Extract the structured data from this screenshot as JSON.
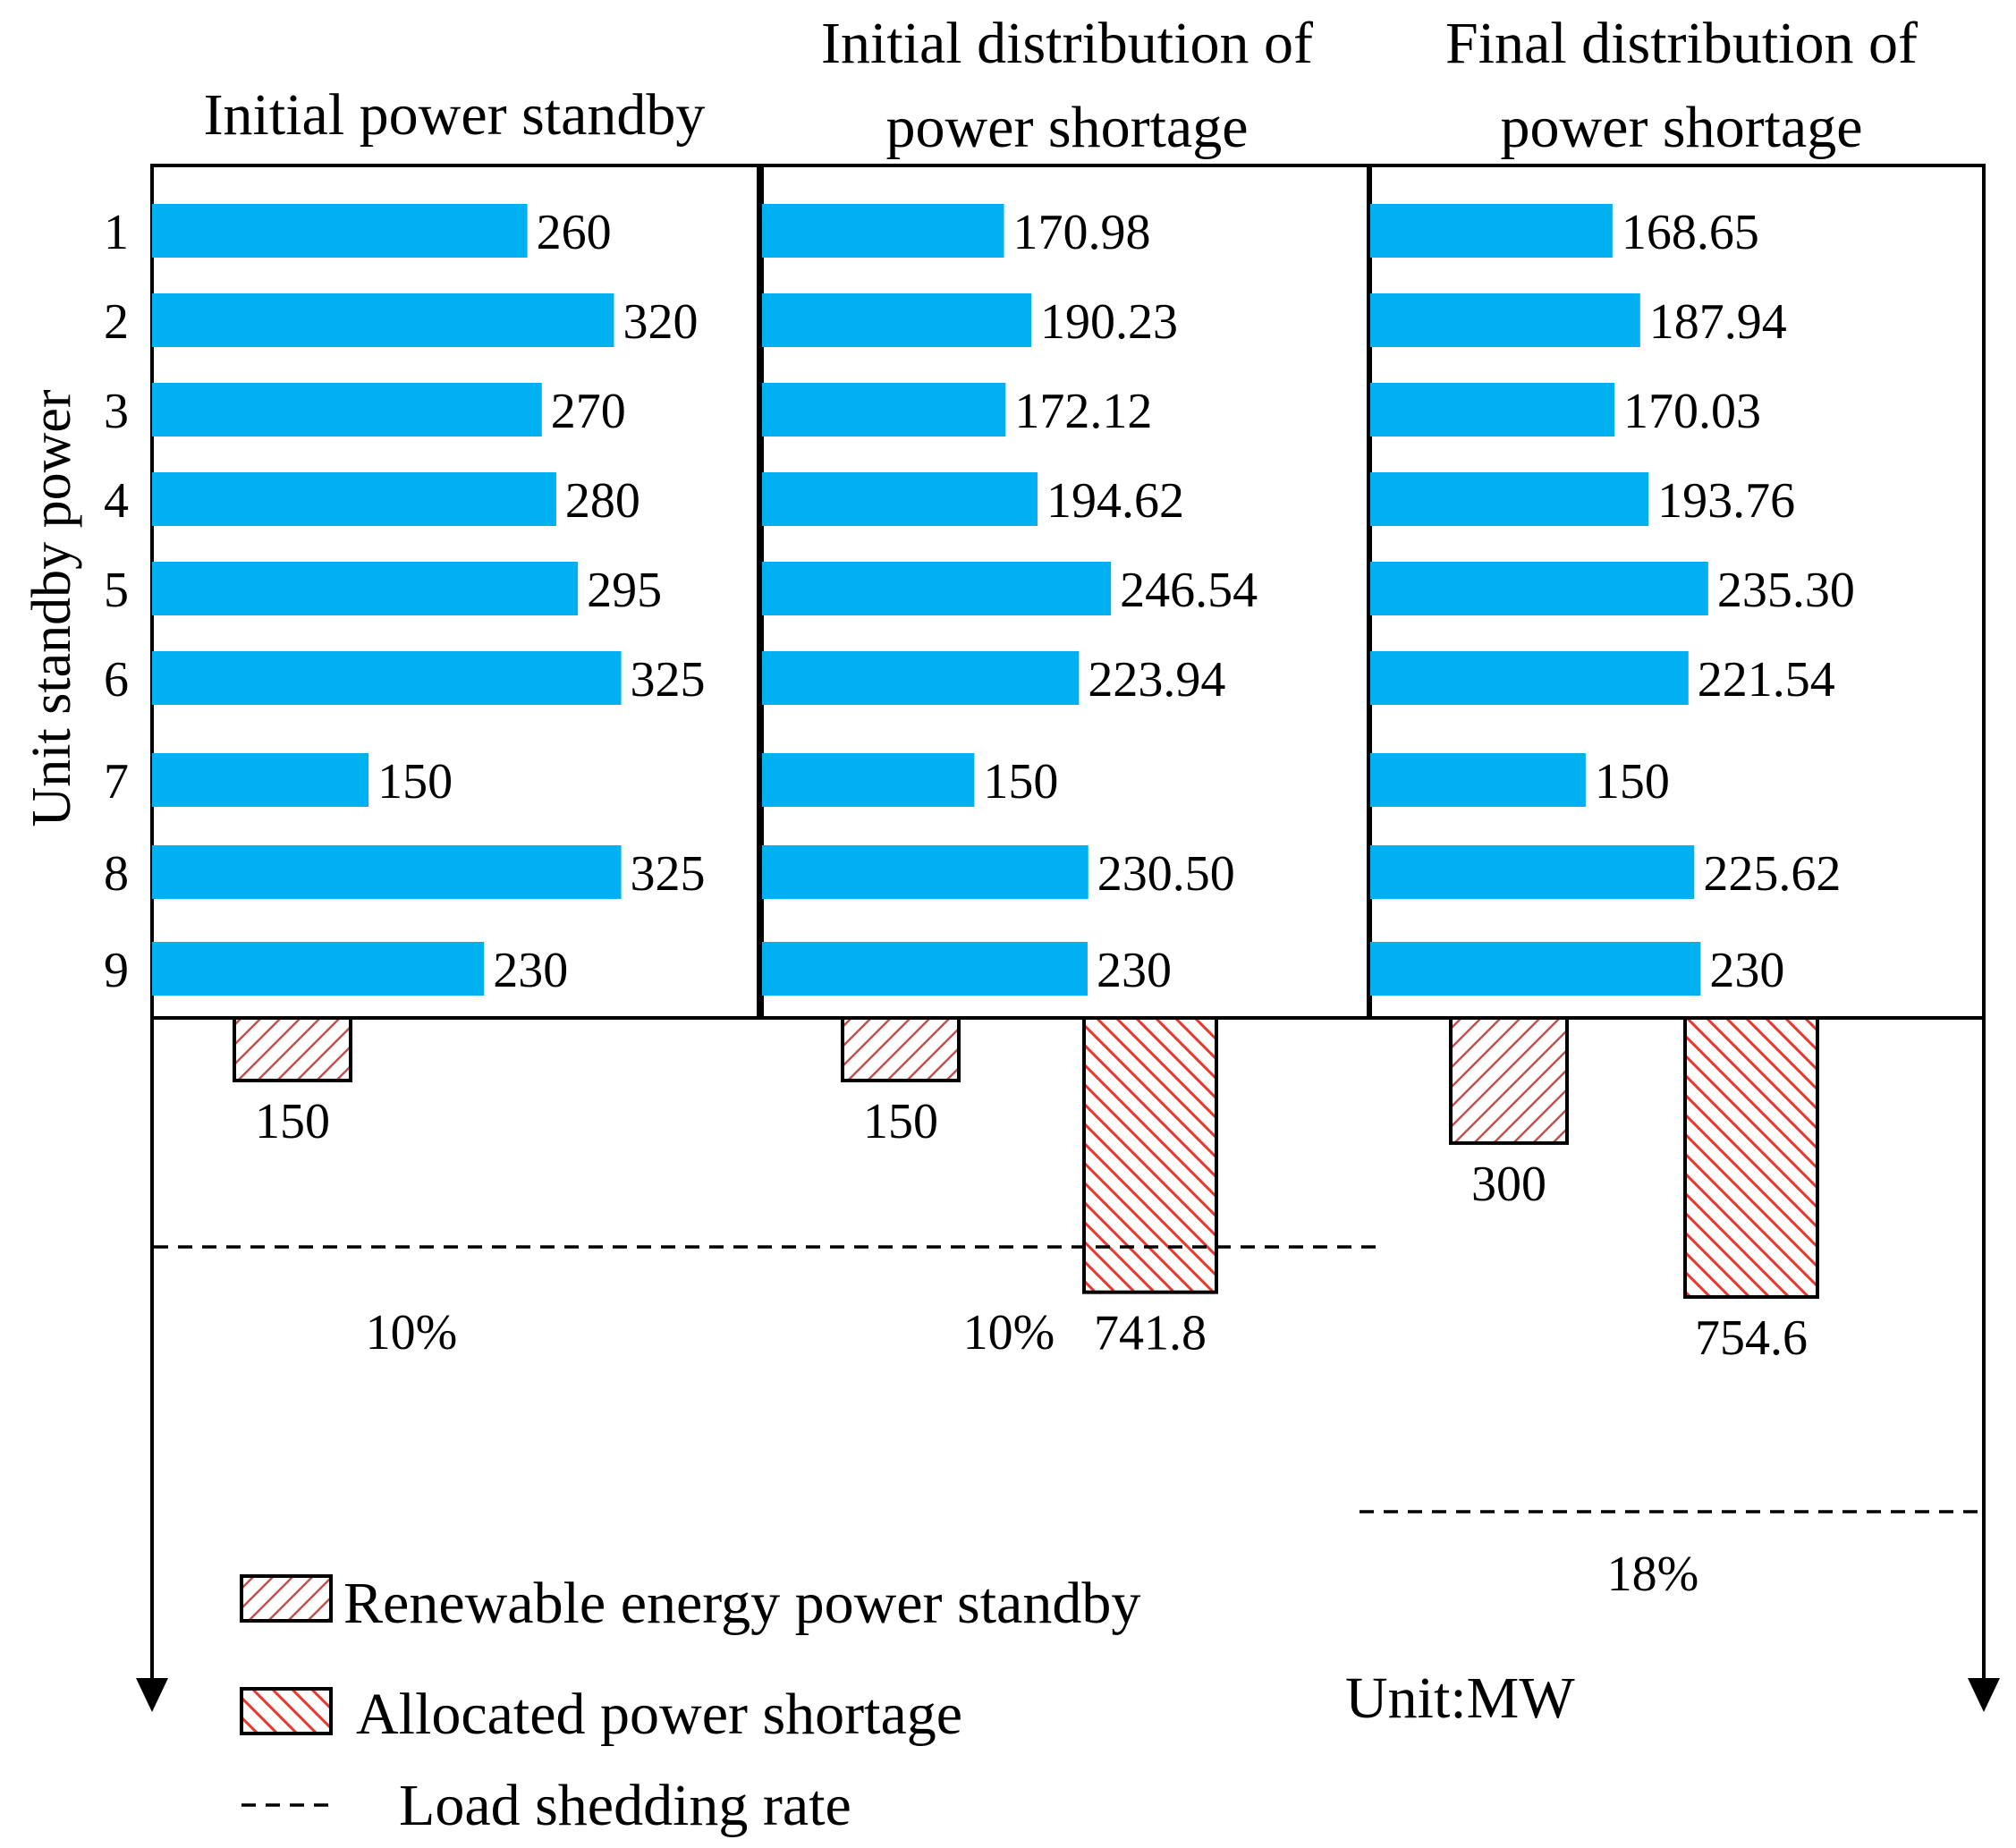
{
  "chart_data": {
    "type": "bar",
    "orientation": "horizontal",
    "unit": "Unit:MW",
    "ylabel": "Unit standby power",
    "categories": [
      "1",
      "2",
      "3",
      "4",
      "5",
      "6",
      "7",
      "8",
      "9"
    ],
    "x_max": 340,
    "panels": [
      {
        "title_lines": [
          "Initial power standby"
        ],
        "values": [
          260,
          320,
          270,
          280,
          295,
          325,
          150,
          325,
          230
        ],
        "labels": [
          "260",
          "320",
          "270",
          "280",
          "295",
          "325",
          "150",
          "325",
          "230"
        ]
      },
      {
        "title_lines": [
          "Initial distribution of",
          "power shortage"
        ],
        "values": [
          170.98,
          190.23,
          172.12,
          194.62,
          246.54,
          223.94,
          150,
          230.5,
          230
        ],
        "labels": [
          "170.98",
          "190.23",
          "172.12",
          "194.62",
          "246.54",
          "223.94",
          "150",
          "230.50",
          "230"
        ]
      },
      {
        "title_lines": [
          "Final distribution of",
          "power shortage"
        ],
        "values": [
          168.65,
          187.94,
          170.03,
          193.76,
          235.3,
          221.54,
          150,
          225.62,
          230
        ],
        "labels": [
          "168.65",
          "187.94",
          "170.03",
          "193.76",
          "235.30",
          "221.54",
          "150",
          "225.62",
          "230"
        ]
      }
    ],
    "lower_bars": [
      {
        "panel": 0,
        "series": "renewable",
        "value": 150,
        "label": "150"
      },
      {
        "panel": 1,
        "series": "renewable",
        "value": 150,
        "label": "150"
      },
      {
        "panel": 1,
        "series": "shortage",
        "value": 741.8,
        "label": "741.8"
      },
      {
        "panel": 2,
        "series": "renewable",
        "value": 300,
        "label": "300"
      },
      {
        "panel": 2,
        "series": "shortage",
        "value": 754.6,
        "label": "754.6"
      }
    ],
    "load_shedding": [
      {
        "panel": 0,
        "label": "10%"
      },
      {
        "panel": 1,
        "label": "10%"
      },
      {
        "panel": 2,
        "label": "18%"
      }
    ],
    "legend": {
      "renewable": "Renewable energy power standby",
      "shortage": "Allocated power shortage",
      "shedding": "Load shedding rate"
    },
    "colors": {
      "bar": "#00b0f0",
      "hatch": "#e8382e",
      "renewable_hatch": "#c0504d",
      "axis": "#000000"
    }
  }
}
